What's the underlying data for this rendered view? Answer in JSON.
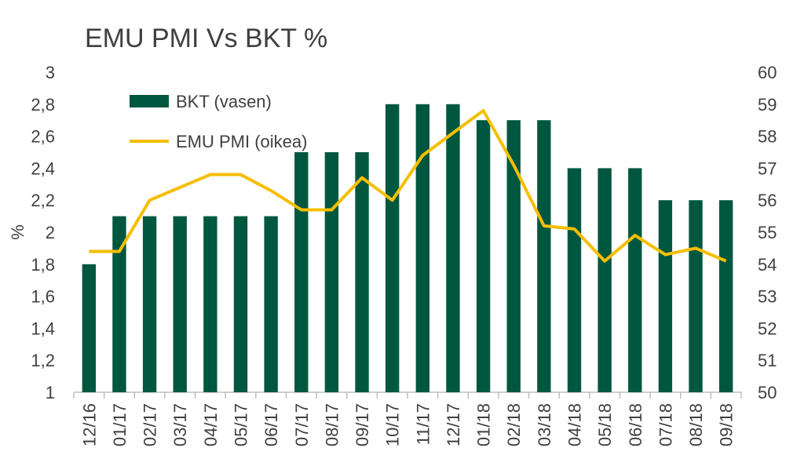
{
  "chart_data": {
    "type": "bar+line",
    "title": "EMU PMI Vs BKT %",
    "ylabel_left": "%",
    "ylim_left": [
      1,
      3
    ],
    "yticks_left": [
      "1",
      "1,2",
      "1,4",
      "1,6",
      "1,8",
      "2",
      "2,2",
      "2,4",
      "2,6",
      "2,8",
      "3"
    ],
    "ylim_right": [
      50,
      60
    ],
    "yticks_right": [
      "50",
      "51",
      "52",
      "53",
      "54",
      "55",
      "56",
      "57",
      "58",
      "59",
      "60"
    ],
    "categories": [
      "12/16",
      "01/17",
      "02/17",
      "03/17",
      "04/17",
      "05/17",
      "06/17",
      "07/17",
      "08/17",
      "09/17",
      "10/17",
      "11/17",
      "12/17",
      "01/18",
      "02/18",
      "03/18",
      "04/18",
      "05/18",
      "06/18",
      "07/18",
      "08/18",
      "09/18"
    ],
    "series": [
      {
        "name": "BKT (vasen)",
        "kind": "bar",
        "axis": "left",
        "color": "#00573f",
        "values": [
          1.8,
          2.1,
          2.1,
          2.1,
          2.1,
          2.1,
          2.1,
          2.5,
          2.5,
          2.5,
          2.8,
          2.8,
          2.8,
          2.7,
          2.7,
          2.7,
          2.4,
          2.4,
          2.4,
          2.2,
          2.2,
          2.2
        ]
      },
      {
        "name": "EMU PMI (oikea)",
        "kind": "line",
        "axis": "right",
        "color": "#f5be00",
        "values": [
          54.4,
          54.4,
          56.0,
          56.4,
          56.8,
          56.8,
          56.3,
          55.7,
          55.7,
          56.7,
          56.0,
          57.4,
          58.1,
          58.8,
          57.1,
          55.2,
          55.1,
          54.1,
          54.9,
          54.3,
          54.5,
          54.1
        ]
      }
    ],
    "legend_position": "top-left",
    "grid": false
  }
}
